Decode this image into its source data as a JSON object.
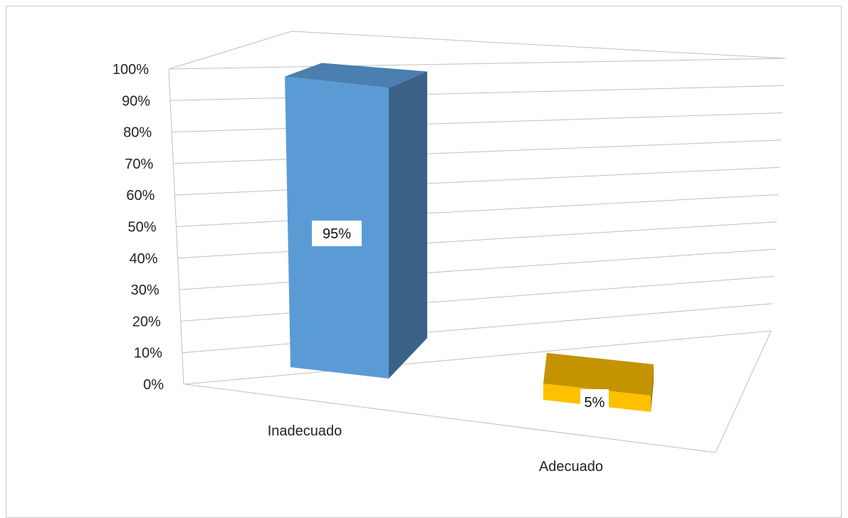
{
  "chart_data": {
    "type": "bar",
    "three_d": true,
    "categories": [
      "Inadecuado",
      "Adecuado"
    ],
    "values": [
      95,
      5
    ],
    "data_labels": [
      "95%",
      "5%"
    ],
    "bar_colors": {
      "Inadecuado": {
        "front": "#5b9bd5",
        "top": "#4a7fb0",
        "side": "#3a6287"
      },
      "Adecuado": {
        "front": "#ffc000",
        "top": "#c49300",
        "side": "#a87e00"
      }
    },
    "y_ticks": [
      "0%",
      "10%",
      "20%",
      "30%",
      "40%",
      "50%",
      "60%",
      "70%",
      "80%",
      "90%",
      "100%"
    ],
    "ylim": [
      0,
      100
    ],
    "y_unit": "%",
    "grid": true,
    "legend": "none",
    "title": "",
    "xlabel": "",
    "ylabel": ""
  }
}
